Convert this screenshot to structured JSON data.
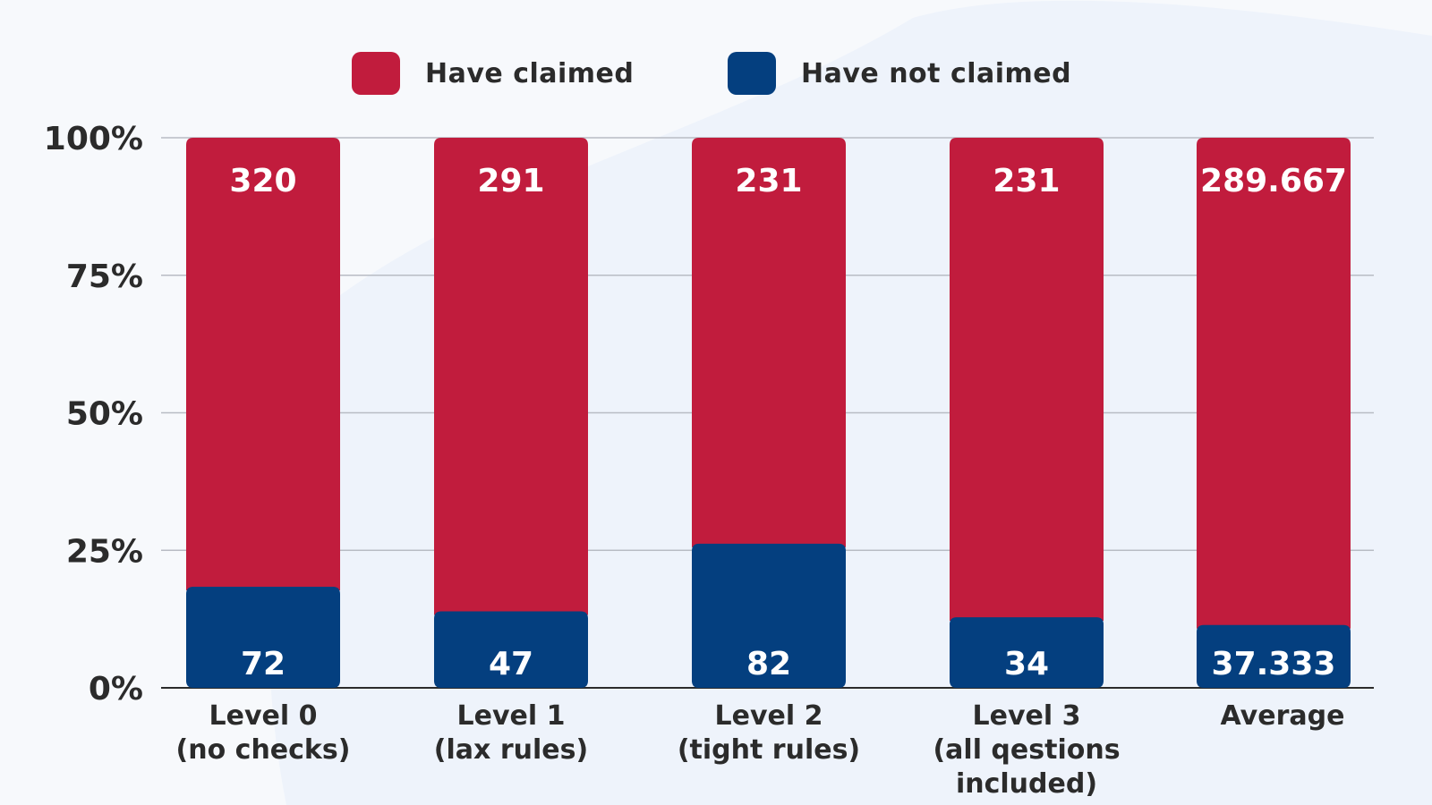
{
  "colors": {
    "claimed": "#c11c3d",
    "not_claimed": "#043f7f",
    "axis": "#2b2b2b",
    "grid": "#b8bcc4",
    "background": "#f7f9fc"
  },
  "legend": {
    "claimed_label": "Have claimed",
    "not_claimed_label": "Have not claimed"
  },
  "chart_data": {
    "type": "bar",
    "stacked": true,
    "normalized": true,
    "categories": [
      [
        "Level 0",
        "(no checks)"
      ],
      [
        "Level 1",
        "(lax rules)"
      ],
      [
        "Level 2",
        "(tight rules)"
      ],
      [
        "Level 3",
        "(all qestions",
        "included)"
      ],
      [
        "Average"
      ]
    ],
    "series": [
      {
        "name": "Have not claimed",
        "color": "#043f7f",
        "values": [
          72,
          47,
          82,
          34,
          37.333
        ]
      },
      {
        "name": "Have claimed",
        "color": "#c11c3d",
        "values": [
          320,
          291,
          231,
          231,
          289.667
        ]
      }
    ],
    "yticks": [
      "0%",
      "25%",
      "50%",
      "75%",
      "100%"
    ],
    "ylim": [
      0,
      100
    ],
    "grid": true,
    "legend_position": "top-center",
    "title": "",
    "xlabel": "",
    "ylabel": ""
  }
}
